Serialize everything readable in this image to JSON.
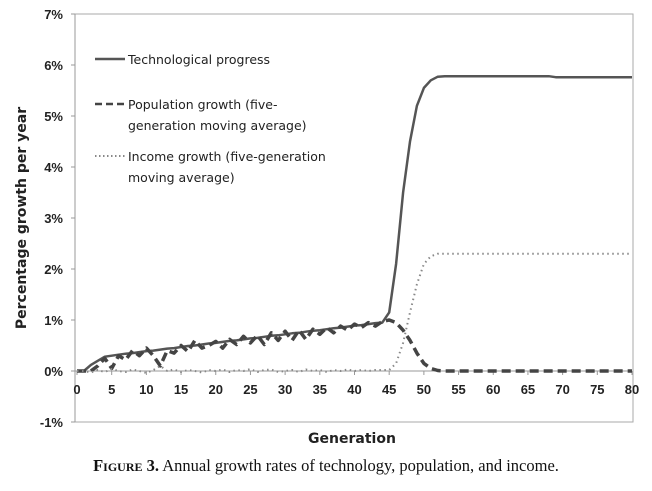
{
  "chart_data": {
    "type": "line",
    "xlabel": "Generation",
    "ylabel": "Percentage growth per year",
    "xlim": [
      0,
      80
    ],
    "ylim": [
      -1,
      7
    ],
    "x_ticks": [
      "0",
      "5",
      "10",
      "15",
      "20",
      "25",
      "30",
      "35",
      "40",
      "45",
      "50",
      "55",
      "60",
      "65",
      "70",
      "75",
      "80"
    ],
    "y_ticks": [
      "-1%",
      "0%",
      "1%",
      "2%",
      "3%",
      "4%",
      "5%",
      "6%",
      "7%"
    ],
    "grid": false,
    "legend_placement": "top-left",
    "x": [
      0,
      1,
      2,
      3,
      4,
      5,
      6,
      7,
      8,
      9,
      10,
      11,
      12,
      13,
      14,
      15,
      16,
      17,
      18,
      19,
      20,
      21,
      22,
      23,
      24,
      25,
      26,
      27,
      28,
      29,
      30,
      31,
      32,
      33,
      34,
      35,
      36,
      37,
      38,
      39,
      40,
      41,
      42,
      43,
      44,
      45,
      46,
      47,
      48,
      49,
      50,
      51,
      52,
      53,
      54,
      55,
      56,
      57,
      58,
      59,
      60,
      61,
      62,
      63,
      64,
      65,
      66,
      67,
      68,
      69,
      70,
      71,
      72,
      73,
      74,
      75,
      76,
      77,
      78,
      79,
      80
    ],
    "series": [
      {
        "name": "Technological progress",
        "style": "solid",
        "color": "#555555",
        "values": [
          0,
          0,
          0.12,
          0.2,
          0.28,
          0.3,
          0.32,
          0.34,
          0.35,
          0.37,
          0.39,
          0.4,
          0.42,
          0.44,
          0.45,
          0.47,
          0.49,
          0.5,
          0.52,
          0.54,
          0.55,
          0.57,
          0.59,
          0.6,
          0.62,
          0.64,
          0.65,
          0.67,
          0.69,
          0.7,
          0.72,
          0.74,
          0.75,
          0.77,
          0.79,
          0.8,
          0.82,
          0.84,
          0.85,
          0.87,
          0.89,
          0.9,
          0.92,
          0.94,
          0.95,
          1.15,
          2.1,
          3.5,
          4.5,
          5.2,
          5.55,
          5.7,
          5.77,
          5.78,
          5.78,
          5.78,
          5.78,
          5.78,
          5.78,
          5.78,
          5.78,
          5.78,
          5.78,
          5.78,
          5.78,
          5.78,
          5.78,
          5.78,
          5.78,
          5.76,
          5.76,
          5.76,
          5.76,
          5.76,
          5.76,
          5.76,
          5.76,
          5.76,
          5.76,
          5.76,
          5.76
        ]
      },
      {
        "name": "Population growth (five-generation moving average)",
        "style": "dashed",
        "color": "#444444",
        "values": [
          0,
          0,
          0,
          0.1,
          0.25,
          0.05,
          0.3,
          0.22,
          0.4,
          0.3,
          0.45,
          0.3,
          0.1,
          0.4,
          0.35,
          0.5,
          0.38,
          0.6,
          0.45,
          0.5,
          0.58,
          0.45,
          0.62,
          0.52,
          0.68,
          0.55,
          0.7,
          0.52,
          0.75,
          0.6,
          0.78,
          0.6,
          0.8,
          0.62,
          0.82,
          0.72,
          0.85,
          0.75,
          0.88,
          0.8,
          0.92,
          0.85,
          0.95,
          0.88,
          0.97,
          1.0,
          0.95,
          0.8,
          0.6,
          0.35,
          0.15,
          0.05,
          0.01,
          0,
          0,
          0,
          0,
          0,
          0,
          0,
          0,
          0,
          0,
          0,
          0,
          0,
          0,
          0,
          0,
          0,
          0,
          0,
          0,
          0,
          0,
          0,
          0,
          0,
          0,
          0,
          0
        ]
      },
      {
        "name": "Income growth (five-generation moving average)",
        "style": "dotted",
        "color": "#888888",
        "values": [
          0,
          0,
          -0.03,
          0.02,
          -0.02,
          0.04,
          0,
          -0.02,
          0.03,
          0,
          -0.04,
          0.02,
          0.1,
          0,
          0.03,
          -0.02,
          0.02,
          0,
          -0.03,
          0.02,
          0,
          0.03,
          -0.02,
          0.02,
          0,
          0.04,
          -0.02,
          0.02,
          0.03,
          -0.02,
          0,
          0.02,
          -0.02,
          0.03,
          0,
          0.02,
          -0.02,
          0.02,
          0,
          0.03,
          0,
          0.02,
          0,
          0.02,
          0.02,
          0.02,
          0.15,
          0.55,
          1.15,
          1.7,
          2.1,
          2.25,
          2.3,
          2.3,
          2.3,
          2.3,
          2.3,
          2.3,
          2.3,
          2.3,
          2.3,
          2.3,
          2.3,
          2.3,
          2.3,
          2.3,
          2.3,
          2.3,
          2.3,
          2.3,
          2.3,
          2.3,
          2.3,
          2.3,
          2.3,
          2.3,
          2.3,
          2.3,
          2.3,
          2.3,
          2.3
        ]
      }
    ],
    "legend": [
      {
        "lines": [
          "Technological progress"
        ]
      },
      {
        "lines": [
          "Population growth (five-",
          "generation moving average)"
        ]
      },
      {
        "lines": [
          "Income growth (five-generation",
          "moving average)"
        ]
      }
    ]
  },
  "caption": {
    "label": "Figure 3.",
    "text": " Annual growth rates of technology, population, and income."
  }
}
